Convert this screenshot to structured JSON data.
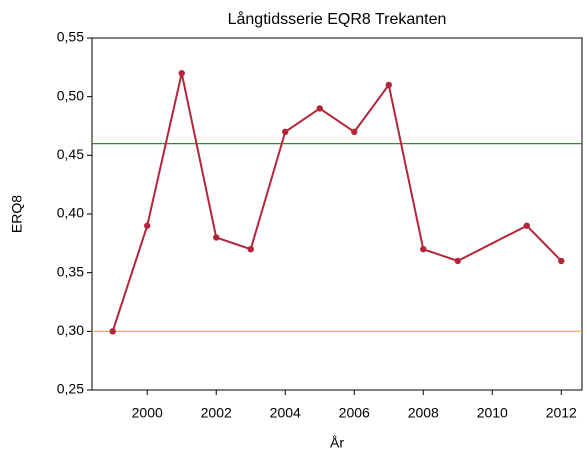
{
  "chart_data": {
    "type": "line",
    "title": "Långtidsserie EQR8 Trekanten",
    "x_label": "År",
    "y_label": "ERQ8",
    "x": [
      1999,
      2000,
      2001,
      2002,
      2003,
      2004,
      2005,
      2006,
      2007,
      2008,
      2009,
      2011,
      2012
    ],
    "series": [
      {
        "color": "#b5253a",
        "values": [
          0.3,
          0.39,
          0.52,
          0.38,
          0.37,
          0.47,
          0.49,
          0.47,
          0.51,
          0.37,
          0.36,
          0.39,
          0.36
        ]
      }
    ],
    "reference_lines": [
      {
        "value": 0.46,
        "color": "#2e8b2e"
      },
      {
        "value": 0.3,
        "color": "#f5a442"
      }
    ],
    "xlim": [
      1998.4,
      2012.6
    ],
    "ylim": [
      0.25,
      0.55
    ],
    "xticks": [
      2000,
      2002,
      2004,
      2006,
      2008,
      2010,
      2012
    ],
    "yticks": [
      {
        "value": 0.25,
        "label": "0,25"
      },
      {
        "value": 0.3,
        "label": "0,30"
      },
      {
        "value": 0.35,
        "label": "0,35"
      },
      {
        "value": 0.4,
        "label": "0,40"
      },
      {
        "value": 0.45,
        "label": "0,45"
      },
      {
        "value": 0.5,
        "label": "0,50"
      },
      {
        "value": 0.55,
        "label": "0,55"
      }
    ]
  }
}
